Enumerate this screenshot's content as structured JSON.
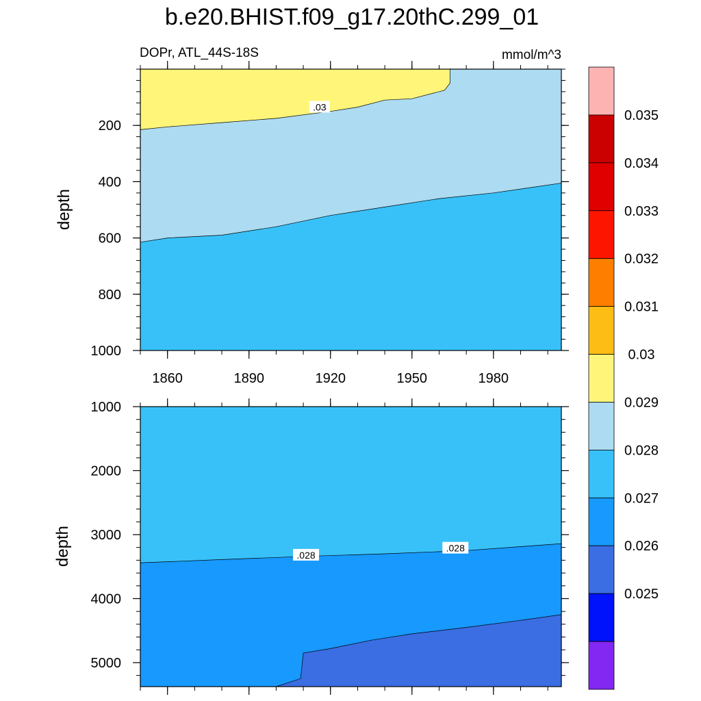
{
  "chart_data": {
    "type": "contour",
    "title": "b.e20.BHIST.f09_g17.20thC.299_01",
    "subtitle_left": "DOPr, ATL_44S-18S",
    "subtitle_right": "mmol/m^3",
    "xlabel": "",
    "ylabel": "depth",
    "xlim": [
      1850,
      2005
    ],
    "x_ticks": [
      "1860",
      "1890",
      "1920",
      "1950",
      "1980"
    ],
    "x_tick_values": [
      1860,
      1890,
      1920,
      1950,
      1980
    ],
    "panels": [
      {
        "name": "upper",
        "ylim": [
          0,
          1000
        ],
        "y_ticks": [
          "200",
          "400",
          "600",
          "800",
          "1000"
        ],
        "y_tick_values": [
          200,
          400,
          600,
          800,
          1000
        ],
        "regions": [
          {
            "level": "0.028-0.029",
            "color": "#38c1f8",
            "boundary": [
              [
                1850,
                1000
              ],
              [
                2005,
                1000
              ],
              [
                2005,
                0
              ],
              [
                1850,
                0
              ]
            ]
          },
          {
            "level": "0.029-0.03",
            "color": "#addbf1",
            "boundary": [
              [
                1850,
                615
              ],
              [
                1860,
                600
              ],
              [
                1880,
                590
              ],
              [
                1900,
                560
              ],
              [
                1920,
                520
              ],
              [
                1940,
                490
              ],
              [
                1960,
                460
              ],
              [
                1980,
                440
              ],
              [
                2005,
                405
              ],
              [
                2005,
                0
              ],
              [
                1850,
                0
              ]
            ]
          },
          {
            "level": "0.03-0.031",
            "color": "#fff579",
            "boundary": [
              [
                1850,
                215
              ],
              [
                1860,
                205
              ],
              [
                1880,
                190
              ],
              [
                1900,
                175
              ],
              [
                1920,
                150
              ],
              [
                1930,
                135
              ],
              [
                1940,
                110
              ],
              [
                1950,
                105
              ],
              [
                1962,
                75
              ],
              [
                1964,
                50
              ],
              [
                1964,
                0
              ],
              [
                1850,
                0
              ]
            ]
          }
        ],
        "contour_labels": [
          {
            "text": ".03",
            "x": 1916,
            "y": 135
          }
        ]
      },
      {
        "name": "lower",
        "ylim": [
          1000,
          5375
        ],
        "y_ticks": [
          "1000",
          "2000",
          "3000",
          "4000",
          "5000"
        ],
        "y_tick_values": [
          1000,
          2000,
          3000,
          4000,
          5000
        ],
        "regions": [
          {
            "level": "0.028-0.029",
            "color": "#38c1f8",
            "boundary": [
              [
                1850,
                1000
              ],
              [
                2005,
                1000
              ],
              [
                2005,
                5375
              ],
              [
                1850,
                5375
              ]
            ]
          },
          {
            "level": "0.027-0.028",
            "color": "#1799fe",
            "boundary": [
              [
                1850,
                3440
              ],
              [
                1880,
                3390
              ],
              [
                1910,
                3340
              ],
              [
                1940,
                3300
              ],
              [
                1970,
                3250
              ],
              [
                2005,
                3140
              ],
              [
                2005,
                5375
              ],
              [
                1850,
                5375
              ]
            ]
          },
          {
            "level": "0.026-0.027",
            "color": "#3b6de3",
            "boundary": [
              [
                1900,
                5375
              ],
              [
                1909,
                5250
              ],
              [
                1910,
                4850
              ],
              [
                1920,
                4780
              ],
              [
                1935,
                4650
              ],
              [
                1950,
                4550
              ],
              [
                1970,
                4450
              ],
              [
                1990,
                4340
              ],
              [
                2005,
                4250
              ],
              [
                2005,
                5375
              ]
            ]
          }
        ],
        "contour_labels": [
          {
            "text": ".028",
            "x": 1911,
            "y": 3320
          },
          {
            "text": ".028",
            "x": 1966,
            "y": 3210
          }
        ]
      }
    ],
    "colorbar": {
      "levels": [
        "0.025",
        "0.026",
        "0.027",
        "0.028",
        "0.029",
        "0.03",
        "0.031",
        "0.032",
        "0.033",
        "0.034",
        "0.035"
      ],
      "colors": [
        "#8327f2",
        "#0011fb",
        "#3b6de3",
        "#1799fe",
        "#38c1f8",
        "#addbf1",
        "#fff579",
        "#febd15",
        "#fe7f00",
        "#fe1500",
        "#e00000",
        "#cb0000",
        "#feb3b3"
      ]
    }
  }
}
